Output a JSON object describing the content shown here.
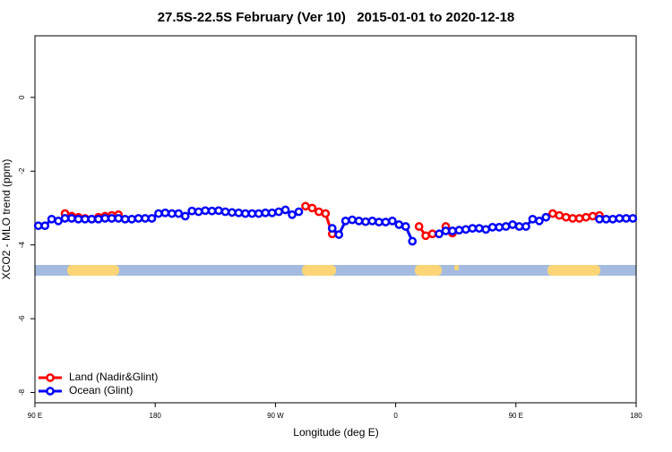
{
  "chart_data": {
    "type": "line",
    "title": "27.5S-22.5S February (Ver 10)   2015-01-01 to 2020-12-18",
    "xlabel": "Longitude (deg E)",
    "ylabel": "XCO2 - MLO trend (ppm)",
    "xlim": [
      90,
      540
    ],
    "xticks": [
      {
        "value": 90,
        "label": "90 E"
      },
      180,
      {
        "value": 270,
        "label": "90 W"
      },
      {
        "value": 360,
        "label": "0"
      },
      {
        "value": 450,
        "label": "90 E"
      },
      {
        "value": 540,
        "label": "180"
      }
    ],
    "ylim": [
      -8.28,
      1.67
    ],
    "yticks": [
      0,
      -2,
      -4,
      -6,
      -8
    ],
    "legend": "bottom-left",
    "x": [
      92.5,
      97.5,
      102.5,
      107.5,
      112.5,
      117.5,
      122.5,
      127.5,
      132.5,
      137.5,
      142.5,
      147.5,
      152.5,
      157.5,
      162.5,
      167.5,
      172.5,
      177.5,
      182.5,
      187.5,
      192.5,
      197.5,
      202.5,
      207.5,
      212.5,
      217.5,
      222.5,
      227.5,
      232.5,
      237.5,
      242.5,
      247.5,
      252.5,
      257.5,
      262.5,
      267.5,
      272.5,
      277.5,
      282.5,
      287.5,
      292.5,
      297.5,
      302.5,
      307.5,
      312.5,
      317.5,
      322.5,
      327.5,
      332.5,
      337.5,
      342.5,
      347.5,
      352.5,
      357.5,
      362.5,
      367.5,
      372.5,
      377.5,
      382.5,
      387.5,
      392.5,
      397.5,
      402.5,
      407.5,
      412.5,
      417.5,
      422.5,
      427.5,
      432.5,
      437.5,
      442.5,
      447.5,
      452.5,
      457.5,
      462.5,
      467.5,
      472.5,
      477.5,
      482.5,
      487.5,
      492.5,
      497.5,
      502.5,
      507.5,
      512.5,
      517.5,
      522.5,
      527.5,
      532.5,
      537.5
    ],
    "series": [
      {
        "name": "Land (Nadir&Glint)",
        "color": "#ff0000",
        "values": [
          null,
          null,
          null,
          null,
          -3.15,
          -3.22,
          -3.25,
          -3.28,
          -3.3,
          -3.25,
          -3.22,
          -3.2,
          -3.18,
          null,
          null,
          null,
          null,
          null,
          null,
          null,
          null,
          null,
          null,
          null,
          null,
          null,
          null,
          null,
          null,
          null,
          null,
          null,
          null,
          null,
          null,
          null,
          null,
          null,
          null,
          null,
          -2.95,
          -3.0,
          -3.1,
          -3.15,
          -3.7,
          null,
          null,
          null,
          null,
          null,
          null,
          null,
          null,
          null,
          null,
          null,
          null,
          -3.5,
          -3.75,
          -3.7,
          null,
          -3.5,
          -3.68,
          null,
          null,
          null,
          null,
          null,
          null,
          null,
          null,
          null,
          null,
          null,
          null,
          null,
          null,
          -3.15,
          -3.2,
          -3.25,
          -3.28,
          -3.28,
          -3.25,
          -3.22,
          -3.2,
          null,
          null,
          null,
          null,
          null
        ]
      },
      {
        "name": "Ocean (Glint)",
        "color": "#0000ff",
        "values": [
          -3.48,
          -3.48,
          -3.3,
          -3.35,
          -3.28,
          -3.28,
          -3.3,
          -3.3,
          -3.3,
          -3.3,
          -3.28,
          -3.28,
          -3.28,
          -3.3,
          -3.3,
          -3.28,
          -3.28,
          -3.28,
          -3.15,
          -3.13,
          -3.15,
          -3.15,
          -3.22,
          -3.08,
          -3.1,
          -3.07,
          -3.08,
          -3.07,
          -3.1,
          -3.12,
          -3.13,
          -3.15,
          -3.15,
          -3.15,
          -3.13,
          -3.13,
          -3.1,
          -3.05,
          -3.18,
          -3.1,
          null,
          null,
          null,
          null,
          -3.55,
          -3.72,
          -3.35,
          -3.32,
          -3.35,
          -3.37,
          -3.35,
          -3.38,
          -3.38,
          -3.35,
          -3.45,
          -3.5,
          -3.9,
          null,
          null,
          null,
          -3.7,
          -3.62,
          -3.62,
          -3.6,
          -3.58,
          -3.55,
          -3.55,
          -3.58,
          -3.52,
          -3.52,
          -3.5,
          -3.45,
          -3.5,
          -3.5,
          -3.3,
          -3.35,
          -3.25,
          null,
          null,
          null,
          null,
          null,
          null,
          null,
          -3.3,
          -3.3,
          -3.3,
          -3.28,
          -3.28,
          -3.28
        ]
      }
    ]
  }
}
